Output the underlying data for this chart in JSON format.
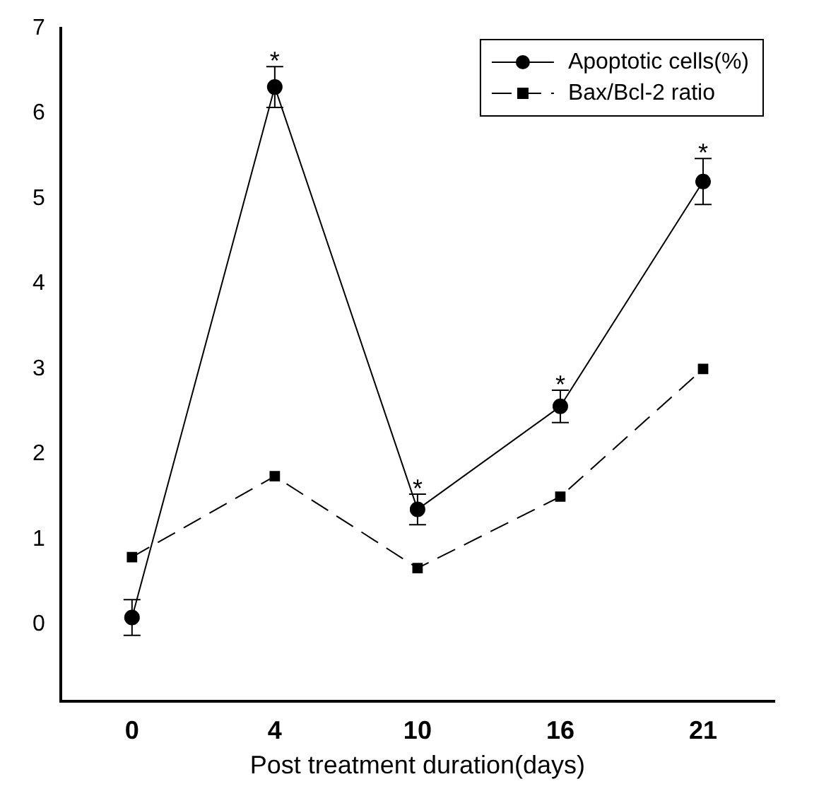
{
  "chart_data": {
    "type": "line",
    "xlabel": "Post treatment duration(days)",
    "categories": [
      "0",
      "4",
      "10",
      "16",
      "21"
    ],
    "series": [
      {
        "name": "Apoptotic cells(%)",
        "color": "#000000",
        "values": [
          0.08,
          6.31,
          1.35,
          2.56,
          5.2
        ],
        "errors": [
          0.21,
          0.24,
          0.18,
          0.19,
          0.27
        ],
        "marker": "circle",
        "line_style": "solid"
      },
      {
        "name": "Bax/Bcl-2 ratio",
        "color": "#000000",
        "values": [
          0.79,
          1.74,
          0.66,
          1.5,
          3.0
        ],
        "marker": "square",
        "line_style": "dashed"
      }
    ],
    "ylim": [
      -0.9,
      7
    ],
    "yticks": [
      0,
      1,
      2,
      3,
      4,
      5,
      6,
      7
    ],
    "grid": false,
    "legend": "top right",
    "annotations": [
      {
        "text": "*",
        "x": "4",
        "y": 6.55
      },
      {
        "text": "*",
        "x": "10",
        "y": 1.53
      },
      {
        "text": "*",
        "x": "16",
        "y": 2.75
      },
      {
        "text": "*",
        "x": "21",
        "y": 5.47
      }
    ]
  }
}
